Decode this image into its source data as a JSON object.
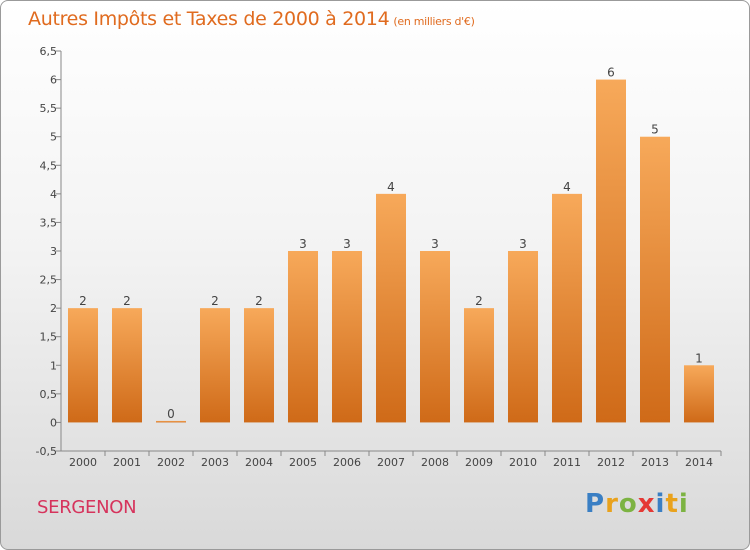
{
  "header": {
    "title": "Autres Impôts et Taxes de 2000 à 2014",
    "unit": "(en milliers d'€)"
  },
  "footer": {
    "commune": "SERGENON",
    "logo_text": "Proxiti",
    "logo_letters": [
      {
        "ch": "P",
        "color": "#3a7fc4"
      },
      {
        "ch": "r",
        "color": "#e9a21c"
      },
      {
        "ch": "o",
        "color": "#7cb342"
      },
      {
        "ch": "x",
        "color": "#e53935"
      },
      {
        "ch": "i",
        "color": "#3a7fc4"
      },
      {
        "ch": "t",
        "color": "#e9a21c"
      },
      {
        "ch": "i",
        "color": "#7cb342"
      }
    ]
  },
  "colors": {
    "title": "#e06b1f",
    "commune": "#d6335c",
    "bar_top": "#f7a95a",
    "bar_bottom": "#cf6a18"
  },
  "chart_data": {
    "type": "bar",
    "title": "Autres Impôts et Taxes de 2000 à 2014",
    "categories": [
      "2000",
      "2001",
      "2002",
      "2003",
      "2004",
      "2005",
      "2006",
      "2007",
      "2008",
      "2009",
      "2010",
      "2011",
      "2012",
      "2013",
      "2014"
    ],
    "values": [
      2,
      2,
      0,
      2,
      2,
      3,
      3,
      4,
      3,
      2,
      3,
      4,
      6,
      5,
      1
    ],
    "ylim": [
      -0.5,
      6.5
    ],
    "yticks": [
      "-0,5",
      "0",
      "0,5",
      "1",
      "1,5",
      "2",
      "2,5",
      "3",
      "3,5",
      "4",
      "4,5",
      "5",
      "5,5",
      "6",
      "6,5"
    ],
    "ytick_values": [
      -0.5,
      0,
      0.5,
      1,
      1.5,
      2,
      2.5,
      3,
      3.5,
      4,
      4.5,
      5,
      5.5,
      6,
      6.5
    ],
    "grid": false,
    "data_labels": true
  }
}
